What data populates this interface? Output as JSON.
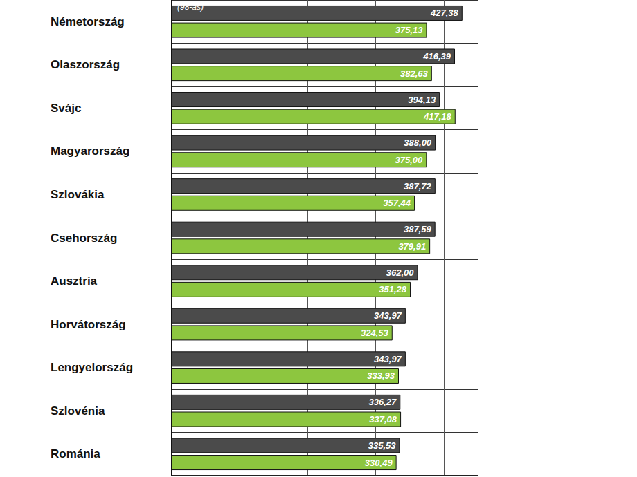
{
  "chart_data": {
    "type": "bar",
    "orientation": "horizontal",
    "categories": [
      "Németország",
      "Olaszország",
      "Svájc",
      "Magyarország",
      "Szlovákia",
      "Csehország",
      "Ausztria",
      "Horvátország",
      "Lengyelország",
      "Szlovénia",
      "Románia"
    ],
    "series": [
      {
        "color": "#4b4b4b",
        "values": [
          427.38,
          416.39,
          394.13,
          388.0,
          387.72,
          387.59,
          362.0,
          343.97,
          343.97,
          336.27,
          335.53
        ],
        "value_labels": [
          "427,38",
          "416,39",
          "394,13",
          "388,00",
          "387,72",
          "387,59",
          "362,00",
          "343,97",
          "343,97",
          "336,27",
          "335,53"
        ]
      },
      {
        "color": "#8dc63f",
        "values": [
          375.13,
          382.63,
          417.18,
          375.0,
          357.44,
          379.91,
          351.28,
          324.53,
          333.93,
          337.08,
          330.49
        ],
        "value_labels": [
          "375,13",
          "382,63",
          "417,18",
          "375,00",
          "357,44",
          "379,91",
          "351,28",
          "324,53",
          "333,93",
          "337,08",
          "330,49"
        ]
      }
    ],
    "annotations": [
      "(98-as)"
    ],
    "xlim": [
      0,
      450
    ],
    "xticks": [
      0,
      100,
      200,
      300,
      400
    ],
    "grid": true,
    "data_labels": true,
    "tick_labels": "y"
  }
}
